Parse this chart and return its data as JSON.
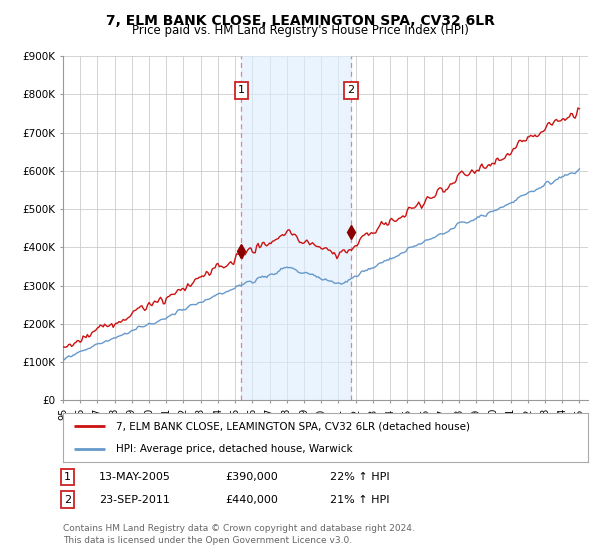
{
  "title": "7, ELM BANK CLOSE, LEAMINGTON SPA, CV32 6LR",
  "subtitle": "Price paid vs. HM Land Registry's House Price Index (HPI)",
  "ylabel_ticks": [
    "£0",
    "£100K",
    "£200K",
    "£300K",
    "£400K",
    "£500K",
    "£600K",
    "£700K",
    "£800K",
    "£900K"
  ],
  "ylim": [
    0,
    900000
  ],
  "xlim_start": 1995.0,
  "xlim_end": 2025.5,
  "sale1_x": 2005.36,
  "sale1_y": 390000,
  "sale2_x": 2011.73,
  "sale2_y": 440000,
  "sale1_label": "1",
  "sale2_label": "2",
  "vline_color": "#dd8888",
  "vline_style": "--",
  "hpi_color": "#6699cc",
  "price_color": "#cc1111",
  "marker_color": "#8b0000",
  "legend_price_label": "7, ELM BANK CLOSE, LEAMINGTON SPA, CV32 6LR (detached house)",
  "legend_hpi_label": "HPI: Average price, detached house, Warwick",
  "footnote1_label": "1",
  "footnote1_date": "13-MAY-2005",
  "footnote1_price": "£390,000",
  "footnote1_hpi": "22% ↑ HPI",
  "footnote2_label": "2",
  "footnote2_date": "23-SEP-2011",
  "footnote2_price": "£440,000",
  "footnote2_hpi": "21% ↑ HPI",
  "copyright_text": "Contains HM Land Registry data © Crown copyright and database right 2024.\nThis data is licensed under the Open Government Licence v3.0.",
  "background_color": "#ffffff",
  "grid_color": "#cccccc",
  "shade_color": "#ddeeff"
}
